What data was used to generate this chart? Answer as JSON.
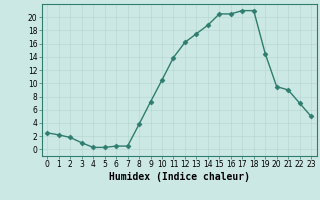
{
  "x": [
    0,
    1,
    2,
    3,
    4,
    5,
    6,
    7,
    8,
    9,
    10,
    11,
    12,
    13,
    14,
    15,
    16,
    17,
    18,
    19,
    20,
    21,
    22,
    23
  ],
  "y": [
    2.5,
    2.2,
    1.8,
    1.0,
    0.3,
    0.3,
    0.5,
    0.5,
    3.8,
    7.2,
    10.5,
    13.9,
    16.2,
    17.5,
    18.8,
    20.5,
    20.5,
    21.0,
    21.0,
    14.5,
    9.5,
    9.0,
    7.0,
    5.0
  ],
  "line_color": "#2e7d6e",
  "marker": "D",
  "markersize": 2.5,
  "linewidth": 1.0,
  "bg_color": "#cce8e4",
  "grid_color": "#b8d8d4",
  "xlabel": "Humidex (Indice chaleur)",
  "xlabel_fontsize": 7,
  "ylim": [
    -1,
    22
  ],
  "xlim": [
    -0.5,
    23.5
  ],
  "yticks": [
    0,
    2,
    4,
    6,
    8,
    10,
    12,
    14,
    16,
    18,
    20
  ],
  "xticks": [
    0,
    1,
    2,
    3,
    4,
    5,
    6,
    7,
    8,
    9,
    10,
    11,
    12,
    13,
    14,
    15,
    16,
    17,
    18,
    19,
    20,
    21,
    22,
    23
  ],
  "tick_fontsize": 5.5,
  "spine_color": "#2e7d6e"
}
